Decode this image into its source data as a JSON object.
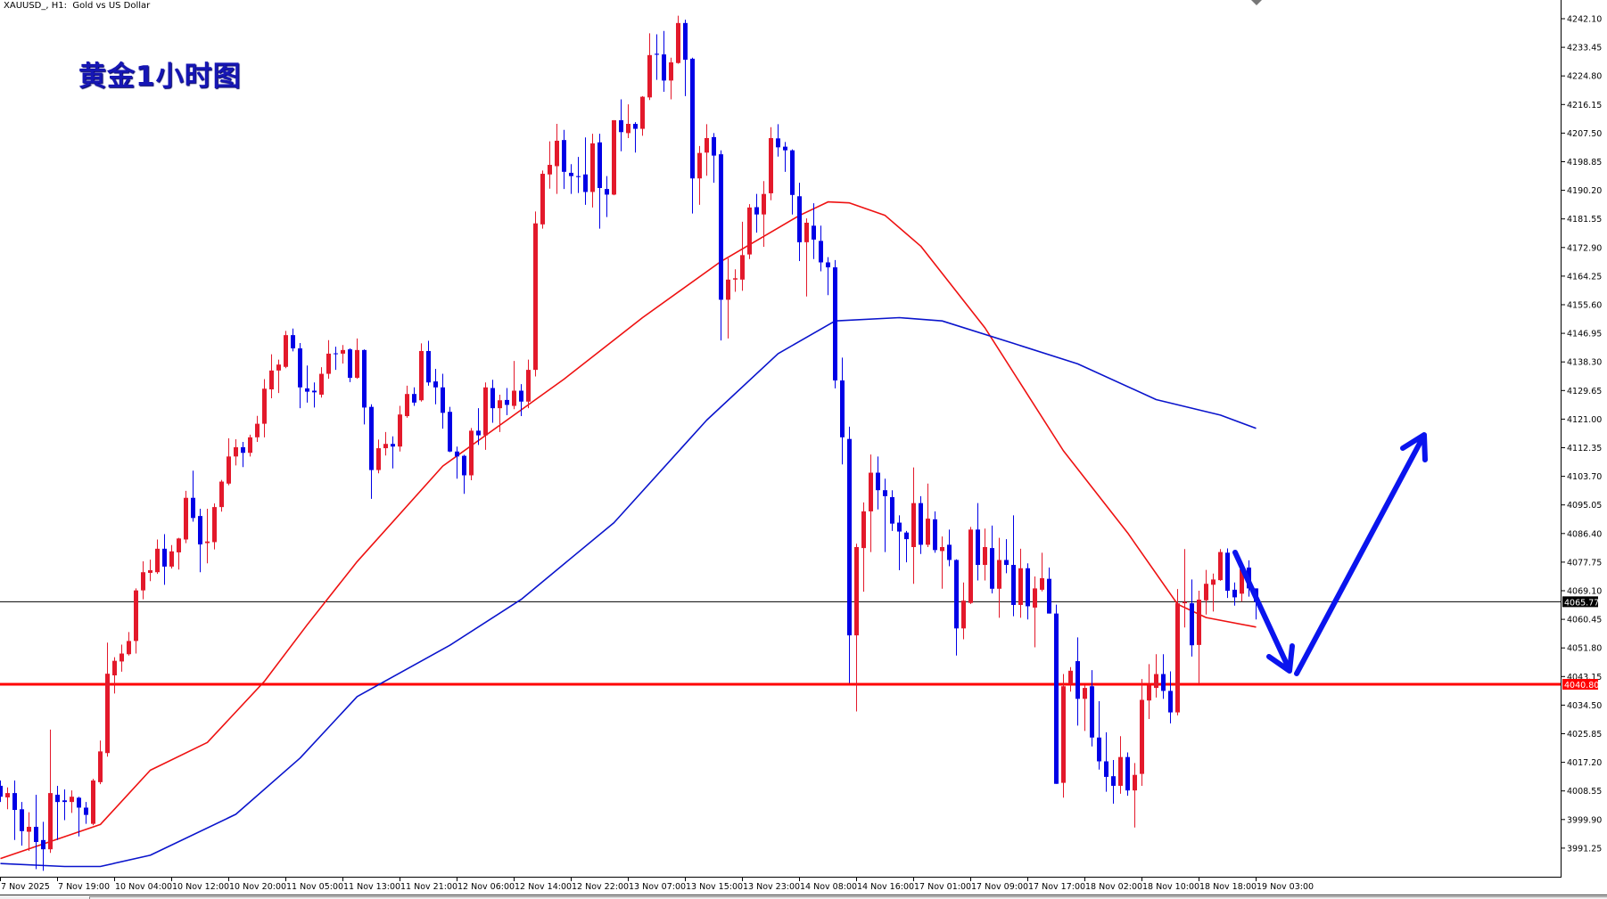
{
  "header": {
    "symbol_title": "XAUUSD_, H1:  Gold vs US Dollar",
    "overlay_label": "黄金1小时图"
  },
  "colors": {
    "bull": "#e3192b",
    "bear": "#0000e6",
    "ma_red": "#ee1111",
    "ma_blue": "#0a14cc",
    "support_line": "#ff0000",
    "current_price_line": "#000000",
    "arrow": "#0a14ee"
  },
  "chart_data": {
    "type": "candlestick",
    "symbol": "XAUUSD_",
    "timeframe": "H1",
    "ylim": [
      3983.0,
      4247.5
    ],
    "grid": false,
    "price_axis": {
      "labels": [
        "4242.10",
        "4233.45",
        "4224.80",
        "4216.15",
        "4207.50",
        "4198.85",
        "4190.20",
        "4181.55",
        "4172.90",
        "4164.25",
        "4155.60",
        "4146.95",
        "4138.30",
        "4129.65",
        "4121.00",
        "4112.35",
        "4103.70",
        "4095.05",
        "4086.40",
        "4077.75",
        "4069.10",
        "4060.45",
        "4051.80",
        "4043.15",
        "4034.50",
        "4025.85",
        "4017.20",
        "4008.55",
        "3999.90",
        "3991.25"
      ]
    },
    "time_axis": {
      "labels": [
        "7 Nov 2025",
        "7 Nov 19:00",
        "10 Nov 04:00",
        "10 Nov 12:00",
        "10 Nov 20:00",
        "11 Nov 05:00",
        "11 Nov 13:00",
        "11 Nov 21:00",
        "12 Nov 06:00",
        "12 Nov 14:00",
        "12 Nov 22:00",
        "13 Nov 07:00",
        "13 Nov 15:00",
        "13 Nov 23:00",
        "14 Nov 08:00",
        "14 Nov 16:00",
        "17 Nov 01:00",
        "17 Nov 09:00",
        "17 Nov 17:00",
        "18 Nov 02:00",
        "18 Nov 10:00",
        "18 Nov 18:00",
        "19 Nov 03:00"
      ],
      "bars_per_label": 8
    },
    "current_price": {
      "value": 4065.77,
      "label": "4065.77"
    },
    "support_level": {
      "value": 4040.8,
      "label": "4040.80"
    },
    "ohlc_fields": [
      "open",
      "high",
      "low",
      "close"
    ],
    "ohlc": [
      [
        4010.1,
        4011.7,
        4005.2,
        4006.8
      ],
      [
        4006.6,
        4009.6,
        4003.0,
        4007.9
      ],
      [
        4007.9,
        4011.7,
        3993.7,
        4002.8
      ],
      [
        4003.0,
        4005.2,
        3992.0,
        3996.4
      ],
      [
        3996.2,
        4002.1,
        3990.4,
        3997.7
      ],
      [
        3997.7,
        4007.4,
        3984.9,
        3993.1
      ],
      [
        3993.7,
        3999.2,
        3984.4,
        3990.9
      ],
      [
        3990.9,
        4027.1,
        3989.8,
        4007.9
      ],
      [
        4007.4,
        4010.1,
        3993.7,
        4005.2
      ],
      [
        4005.7,
        4009.0,
        3999.7,
        4005.2
      ],
      [
        4005.2,
        4008.7,
        4001.9,
        4006.8
      ],
      [
        4006.5,
        4006.8,
        3994.8,
        4003.5
      ],
      [
        4003.5,
        4005.2,
        3998.6,
        4001.3
      ],
      [
        3998.6,
        4012.2,
        3998.2,
        4011.7
      ],
      [
        4011.2,
        4023.8,
        4010.6,
        4020.5
      ],
      [
        4020.0,
        4053.4,
        4018.9,
        4044.0
      ],
      [
        4043.5,
        4049.0,
        4038.0,
        4047.9
      ],
      [
        4047.7,
        4052.8,
        4044.6,
        4050.1
      ],
      [
        4049.9,
        4056.6,
        4049.5,
        4053.9
      ],
      [
        4053.9,
        4069.8,
        4050.1,
        4069.2
      ],
      [
        4069.2,
        4078.0,
        4066.5,
        4074.7
      ],
      [
        4074.5,
        4078.5,
        4072.0,
        4075.3
      ],
      [
        4074.7,
        4084.6,
        4074.2,
        4081.8
      ],
      [
        4081.8,
        4086.2,
        4070.9,
        4076.4
      ],
      [
        4076.4,
        4082.9,
        4075.8,
        4081.0
      ],
      [
        4080.7,
        4085.1,
        4075.5,
        4084.9
      ],
      [
        4084.6,
        4099.3,
        4083.5,
        4097.2
      ],
      [
        4097.2,
        4105.4,
        4090.0,
        4091.1
      ],
      [
        4091.7,
        4093.9,
        4074.7,
        4083.1
      ],
      [
        4083.5,
        4093.9,
        4077.4,
        4084.0
      ],
      [
        4083.8,
        4095.5,
        4081.6,
        4094.4
      ],
      [
        4094.4,
        4102.6,
        4093.0,
        4102.1
      ],
      [
        4101.5,
        4115.2,
        4101.0,
        4109.7
      ],
      [
        4109.7,
        4114.9,
        4107.0,
        4112.5
      ],
      [
        4112.5,
        4114.1,
        4106.5,
        4110.8
      ],
      [
        4110.8,
        4116.3,
        4109.7,
        4115.5
      ],
      [
        4115.5,
        4122.0,
        4114.1,
        4119.6
      ],
      [
        4119.6,
        4133.1,
        4115.5,
        4130.2
      ],
      [
        4130.0,
        4140.6,
        4127.3,
        4135.7
      ],
      [
        4135.7,
        4139.0,
        4128.9,
        4137.5
      ],
      [
        4136.8,
        4147.7,
        4136.4,
        4146.4
      ],
      [
        4146.4,
        4148.4,
        4141.5,
        4142.4
      ],
      [
        4142.4,
        4144.0,
        4124.3,
        4130.6
      ],
      [
        4130.3,
        4137.2,
        4126.0,
        4129.3
      ],
      [
        4129.6,
        4132.1,
        4124.5,
        4129.1
      ],
      [
        4128.4,
        4136.7,
        4127.5,
        4134.7
      ],
      [
        4134.7,
        4144.9,
        4133.2,
        4140.8
      ],
      [
        4140.9,
        4142.9,
        4135.9,
        4140.7
      ],
      [
        4140.8,
        4143.4,
        4137.8,
        4141.9
      ],
      [
        4142.1,
        4142.4,
        4132.2,
        4133.5
      ],
      [
        4133.5,
        4145.4,
        4133.2,
        4141.9
      ],
      [
        4141.9,
        4142.1,
        4119.4,
        4124.5
      ],
      [
        4124.7,
        4125.5,
        4096.9,
        4105.6
      ],
      [
        4105.6,
        4114.8,
        4104.6,
        4112.2
      ],
      [
        4112.2,
        4117.1,
        4110.0,
        4113.5
      ],
      [
        4113.5,
        4115.8,
        4106.1,
        4112.7
      ],
      [
        4112.7,
        4125.0,
        4111.2,
        4122.4
      ],
      [
        4121.9,
        4131.1,
        4121.4,
        4128.6
      ],
      [
        4128.6,
        4130.6,
        4125.0,
        4126.0
      ],
      [
        4126.7,
        4143.9,
        4126.3,
        4141.6
      ],
      [
        4141.6,
        4144.7,
        4131.1,
        4132.1
      ],
      [
        4132.4,
        4136.2,
        4125.5,
        4130.6
      ],
      [
        4130.6,
        4134.7,
        4118.1,
        4122.9
      ],
      [
        4123.2,
        4124.7,
        4111.0,
        4111.2
      ],
      [
        4111.2,
        4112.7,
        4103.0,
        4109.7
      ],
      [
        4109.9,
        4110.2,
        4098.4,
        4104.0
      ],
      [
        4104.0,
        4118.3,
        4102.5,
        4117.5
      ],
      [
        4117.5,
        4124.3,
        4113.2,
        4116.1
      ],
      [
        4116.1,
        4132.1,
        4111.7,
        4130.6
      ],
      [
        4130.4,
        4132.9,
        4119.9,
        4124.3
      ],
      [
        4124.3,
        4128.4,
        4117.1,
        4126.7
      ],
      [
        4126.8,
        4130.4,
        4122.2,
        4125.3
      ],
      [
        4125.0,
        4138.6,
        4124.0,
        4129.6
      ],
      [
        4129.6,
        4131.6,
        4121.9,
        4126.3
      ],
      [
        4126.3,
        4139.0,
        4124.3,
        4135.9
      ],
      [
        4135.9,
        4183.8,
        4133.9,
        4180.2
      ],
      [
        4179.9,
        4196.2,
        4178.6,
        4195.2
      ],
      [
        4195.0,
        4205.0,
        4190.7,
        4197.9
      ],
      [
        4197.5,
        4210.3,
        4189.1,
        4205.2
      ],
      [
        4205.4,
        4208.5,
        4190.6,
        4195.8
      ],
      [
        4195.5,
        4198.1,
        4189.1,
        4194.5
      ],
      [
        4194.5,
        4200.3,
        4189.4,
        4194.2
      ],
      [
        4195.0,
        4206.2,
        4185.8,
        4189.7
      ],
      [
        4189.7,
        4207.3,
        4185.0,
        4204.4
      ],
      [
        4204.7,
        4207.3,
        4178.6,
        4190.9
      ],
      [
        4190.6,
        4194.5,
        4182.1,
        4188.9
      ],
      [
        4188.9,
        4211.4,
        4188.7,
        4211.4
      ],
      [
        4211.4,
        4217.7,
        4202.0,
        4207.8
      ],
      [
        4207.5,
        4216.2,
        4206.0,
        4210.3
      ],
      [
        4210.3,
        4210.8,
        4201.6,
        4208.8
      ],
      [
        4208.8,
        4218.7,
        4206.7,
        4218.5
      ],
      [
        4218.3,
        4237.7,
        4217.5,
        4231.1
      ],
      [
        4231.5,
        4237.4,
        4223.6,
        4231.2
      ],
      [
        4231.3,
        4238.4,
        4220.0,
        4223.4
      ],
      [
        4223.4,
        4230.3,
        4217.7,
        4228.9
      ],
      [
        4228.7,
        4243.0,
        4228.5,
        4240.8
      ],
      [
        4240.8,
        4241.8,
        4218.7,
        4229.7
      ],
      [
        4230.0,
        4230.3,
        4183.2,
        4193.8
      ],
      [
        4193.8,
        4203.6,
        4185.8,
        4201.5
      ],
      [
        4201.6,
        4210.2,
        4194.6,
        4206.0
      ],
      [
        4206.3,
        4207.5,
        4192.5,
        4200.7
      ],
      [
        4201.1,
        4202.3,
        4144.8,
        4157.1
      ],
      [
        4157.1,
        4169.6,
        4145.4,
        4163.2
      ],
      [
        4163.2,
        4166.3,
        4159.5,
        4163.6
      ],
      [
        4163.2,
        4180.7,
        4159.8,
        4170.6
      ],
      [
        4170.8,
        4186.0,
        4169.4,
        4185.0
      ],
      [
        4185.1,
        4189.1,
        4177.4,
        4182.9
      ],
      [
        4182.9,
        4193.0,
        4173.1,
        4189.1
      ],
      [
        4189.3,
        4209.3,
        4187.2,
        4206.0
      ],
      [
        4205.9,
        4210.2,
        4200.4,
        4203.2
      ],
      [
        4203.4,
        4204.8,
        4195.8,
        4202.3
      ],
      [
        4202.3,
        4202.6,
        4182.9,
        4188.8
      ],
      [
        4188.4,
        4192.5,
        4168.8,
        4174.5
      ],
      [
        4174.5,
        4181.7,
        4158.1,
        4180.4
      ],
      [
        4179.5,
        4186.3,
        4169.4,
        4175.3
      ],
      [
        4174.9,
        4179.5,
        4165.7,
        4168.4
      ],
      [
        4168.4,
        4170.0,
        4158.5,
        4166.9
      ],
      [
        4166.9,
        4169.1,
        4130.3,
        4132.7
      ],
      [
        4132.7,
        4139.6,
        4107.3,
        4115.5
      ],
      [
        4115.0,
        4118.7,
        4041.2,
        4055.6
      ],
      [
        4055.6,
        4083.3,
        4032.6,
        4082.3
      ],
      [
        4082.0,
        4095.8,
        4068.8,
        4093.1
      ],
      [
        4093.1,
        4110.3,
        4080.8,
        4104.8
      ],
      [
        4104.8,
        4109.7,
        4093.7,
        4099.5
      ],
      [
        4099.5,
        4103.0,
        4080.8,
        4097.7
      ],
      [
        4097.4,
        4099.5,
        4087.2,
        4089.4
      ],
      [
        4089.7,
        4091.9,
        4075.3,
        4087.0
      ],
      [
        4086.7,
        4087.2,
        4077.7,
        4084.7
      ],
      [
        4082.3,
        4106.4,
        4071.2,
        4095.6
      ],
      [
        4095.6,
        4097.7,
        4080.2,
        4083.0
      ],
      [
        4083.0,
        4101.5,
        4082.3,
        4090.9
      ],
      [
        4090.7,
        4093.1,
        4080.6,
        4081.4
      ],
      [
        4081.1,
        4085.5,
        4069.7,
        4082.3
      ],
      [
        4083.0,
        4087.6,
        4076.5,
        4078.4
      ],
      [
        4078.4,
        4078.6,
        4049.5,
        4057.7
      ],
      [
        4057.7,
        4071.6,
        4054.4,
        4066.1
      ],
      [
        4065.4,
        4088.4,
        4065.1,
        4087.6
      ],
      [
        4087.6,
        4095.6,
        4072.2,
        4076.9
      ],
      [
        4076.9,
        4087.9,
        4072.2,
        4082.3
      ],
      [
        4082.0,
        4088.8,
        4068.3,
        4069.7
      ],
      [
        4069.7,
        4085.1,
        4060.9,
        4078.4
      ],
      [
        4078.4,
        4084.7,
        4074.4,
        4076.9
      ],
      [
        4076.9,
        4091.9,
        4061.4,
        4064.8
      ],
      [
        4064.8,
        4081.8,
        4060.9,
        4075.9
      ],
      [
        4075.9,
        4077.4,
        4060.4,
        4064.4
      ],
      [
        4064.0,
        4073.4,
        4052.0,
        4069.8
      ],
      [
        4069.4,
        4080.6,
        4068.9,
        4072.9
      ],
      [
        4072.7,
        4076.1,
        4062.2,
        4062.2
      ],
      [
        4062.2,
        4064.9,
        4010.7,
        4010.7
      ],
      [
        4011.0,
        4043.9,
        4006.5,
        4040.2
      ],
      [
        4040.9,
        4046.0,
        4038.6,
        4044.9
      ],
      [
        4047.8,
        4055.0,
        4028.3,
        4036.4
      ],
      [
        4036.4,
        4040.6,
        4026.7,
        4039.7
      ],
      [
        4040.2,
        4045.1,
        4022.0,
        4024.7
      ],
      [
        4024.7,
        4035.7,
        4015.0,
        4017.5
      ],
      [
        4017.5,
        4026.3,
        4008.3,
        4012.8
      ],
      [
        4013.0,
        4017.9,
        4004.7,
        4010.1
      ],
      [
        4010.1,
        4025.1,
        4007.7,
        4018.8
      ],
      [
        4018.8,
        4020.2,
        4007.1,
        4008.7
      ],
      [
        4008.7,
        4017.0,
        3997.5,
        4013.4
      ],
      [
        4013.7,
        4042.4,
        4010.1,
        4036.1
      ],
      [
        4035.9,
        4046.9,
        4030.3,
        4040.4
      ],
      [
        4039.7,
        4049.9,
        4036.8,
        4043.9
      ],
      [
        4043.9,
        4049.9,
        4036.4,
        4038.8
      ],
      [
        4038.8,
        4044.7,
        4029.0,
        4032.3
      ],
      [
        4032.3,
        4069.6,
        4031.4,
        4065.3
      ],
      [
        4065.3,
        4081.7,
        4058.0,
        4065.7
      ],
      [
        4065.3,
        4072.5,
        4049.2,
        4052.6
      ],
      [
        4052.7,
        4069.1,
        4040.9,
        4066.4
      ],
      [
        4066.2,
        4075.4,
        4061.9,
        4071.2
      ],
      [
        4070.9,
        4074.3,
        4062.8,
        4072.5
      ],
      [
        4072.3,
        4081.7,
        4072.1,
        4080.8
      ],
      [
        4080.6,
        4081.9,
        4066.9,
        4069.1
      ],
      [
        4069.4,
        4071.6,
        4064.6,
        4067.1
      ],
      [
        4068.2,
        4077.4,
        4065.8,
        4075.6
      ],
      [
        4076.1,
        4078.3,
        4067.3,
        4069.8
      ],
      [
        4069.8,
        4069.8,
        4060.4,
        4065.77
      ]
    ],
    "moving_averages": [
      {
        "color_key": "ma_red",
        "points": [
          [
            0,
            3988.1
          ],
          [
            14,
            3998.4
          ],
          [
            21,
            4014.8
          ],
          [
            29,
            4023.2
          ],
          [
            37,
            4041.7
          ],
          [
            43,
            4058.8
          ],
          [
            50,
            4077.9
          ],
          [
            62,
            4106.8
          ],
          [
            73,
            4123.8
          ],
          [
            79,
            4133.1
          ],
          [
            90,
            4151.7
          ],
          [
            101,
            4168.7
          ],
          [
            112,
            4182.6
          ],
          [
            116,
            4186.7
          ],
          [
            119,
            4186.4
          ],
          [
            124,
            4182.6
          ],
          [
            129,
            4173.3
          ],
          [
            138,
            4148.6
          ],
          [
            149,
            4111.4
          ],
          [
            158,
            4086.6
          ],
          [
            165,
            4065.0
          ],
          [
            169,
            4061.0
          ],
          [
            176,
            4058.1
          ]
        ]
      },
      {
        "color_key": "ma_blue",
        "points": [
          [
            0,
            3986.6
          ],
          [
            9,
            3985.7
          ],
          [
            14,
            3985.7
          ],
          [
            21,
            3989.1
          ],
          [
            33,
            4001.5
          ],
          [
            42,
            4018.5
          ],
          [
            50,
            4037.1
          ],
          [
            63,
            4052.6
          ],
          [
            73,
            4066.5
          ],
          [
            86,
            4089.7
          ],
          [
            99,
            4120.7
          ],
          [
            109,
            4140.8
          ],
          [
            117,
            4150.7
          ],
          [
            126,
            4151.7
          ],
          [
            132,
            4150.7
          ],
          [
            142,
            4143.9
          ],
          [
            151,
            4137.7
          ],
          [
            162,
            4126.9
          ],
          [
            171,
            4122.2
          ],
          [
            176,
            4118.2
          ]
        ]
      }
    ]
  }
}
